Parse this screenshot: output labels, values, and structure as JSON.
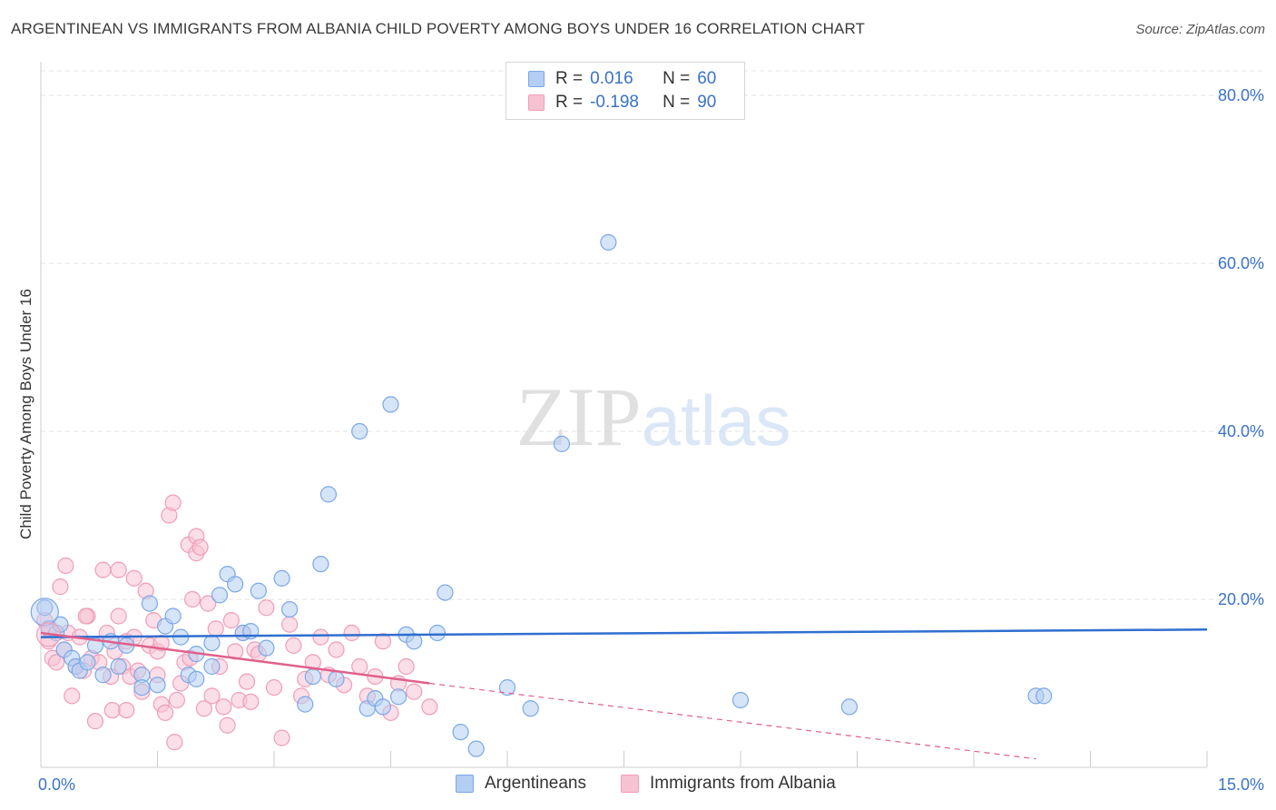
{
  "chart_data": {
    "type": "scatter",
    "title": "ARGENTINEAN VS IMMIGRANTS FROM ALBANIA CHILD POVERTY AMONG BOYS UNDER 16 CORRELATION CHART",
    "source": "Source: ZipAtlas.com",
    "xlabel": "",
    "ylabel": "Child Poverty Among Boys Under 16",
    "xlim": [
      0,
      15
    ],
    "ylim": [
      0,
      84
    ],
    "x_tick_labels": [
      "0.0%",
      "15.0%"
    ],
    "y_ticks": [
      20,
      40,
      60,
      80
    ],
    "y_tick_labels": [
      "20.0%",
      "40.0%",
      "60.0%",
      "80.0%"
    ],
    "grid": true,
    "watermark": "ZIPatlas",
    "series": [
      {
        "name": "Argentineans",
        "color": "#7aa8e8",
        "fill": "#b4cdf2",
        "line_color": "#2f6fd0",
        "stats": {
          "r_label": "R =",
          "r_value": "0.016",
          "n_label": "N =",
          "n_value": "60"
        },
        "trend": {
          "x": [
            0,
            15
          ],
          "y": [
            15.5,
            16.4
          ]
        },
        "points": [
          [
            0.05,
            19
          ],
          [
            0.1,
            16.5
          ],
          [
            0.2,
            16
          ],
          [
            0.25,
            17
          ],
          [
            0.3,
            14
          ],
          [
            0.4,
            13
          ],
          [
            0.45,
            12
          ],
          [
            0.5,
            11.5
          ],
          [
            0.6,
            12.5
          ],
          [
            0.7,
            14.5
          ],
          [
            0.8,
            11
          ],
          [
            0.9,
            15
          ],
          [
            1.0,
            12
          ],
          [
            1.1,
            14.5
          ],
          [
            1.3,
            11
          ],
          [
            1.3,
            9.5
          ],
          [
            1.4,
            19.5
          ],
          [
            1.5,
            9.8
          ],
          [
            1.6,
            16.8
          ],
          [
            1.7,
            18
          ],
          [
            1.8,
            15.5
          ],
          [
            1.9,
            11
          ],
          [
            2.0,
            10.5
          ],
          [
            2.0,
            13.5
          ],
          [
            2.2,
            14.8
          ],
          [
            2.2,
            12
          ],
          [
            2.3,
            20.5
          ],
          [
            2.4,
            23
          ],
          [
            2.5,
            21.8
          ],
          [
            2.6,
            16
          ],
          [
            2.7,
            16.2
          ],
          [
            2.8,
            21
          ],
          [
            2.9,
            14.2
          ],
          [
            3.1,
            22.5
          ],
          [
            3.2,
            18.8
          ],
          [
            3.4,
            7.5
          ],
          [
            3.5,
            10.8
          ],
          [
            3.6,
            24.2
          ],
          [
            3.7,
            32.5
          ],
          [
            3.8,
            10.5
          ],
          [
            4.1,
            40
          ],
          [
            4.2,
            7
          ],
          [
            4.3,
            8.2
          ],
          [
            4.4,
            7.2
          ],
          [
            4.5,
            43.2
          ],
          [
            4.6,
            8.4
          ],
          [
            4.7,
            15.8
          ],
          [
            4.8,
            15
          ],
          [
            5.1,
            16
          ],
          [
            5.2,
            20.8
          ],
          [
            5.4,
            4.2
          ],
          [
            5.6,
            2.2
          ],
          [
            6.0,
            9.5
          ],
          [
            6.3,
            7
          ],
          [
            6.7,
            38.5
          ],
          [
            7.3,
            62.5
          ],
          [
            9.0,
            8
          ],
          [
            10.4,
            7.2
          ],
          [
            12.8,
            8.5
          ],
          [
            12.9,
            8.5
          ]
        ]
      },
      {
        "name": "Immigrants from Albania",
        "color": "#ef9db8",
        "fill": "#f7c3d3",
        "line_color": "#e0608b",
        "stats": {
          "r_label": "R =",
          "r_value": "-0.198",
          "n_label": "N =",
          "n_value": "90"
        },
        "trend": {
          "x": [
            0,
            5.0
          ],
          "y": [
            16,
            10
          ]
        },
        "trend_dashed": {
          "x": [
            5.0,
            12.8
          ],
          "y": [
            10,
            1
          ]
        },
        "points": [
          [
            0.05,
            17.5
          ],
          [
            0.1,
            15
          ],
          [
            0.12,
            16.5
          ],
          [
            0.15,
            13
          ],
          [
            0.2,
            12.5
          ],
          [
            0.25,
            21.5
          ],
          [
            0.3,
            14
          ],
          [
            0.32,
            24
          ],
          [
            0.35,
            16
          ],
          [
            0.4,
            8.5
          ],
          [
            0.45,
            12
          ],
          [
            0.5,
            15.5
          ],
          [
            0.55,
            11.5
          ],
          [
            0.6,
            18
          ],
          [
            0.65,
            13
          ],
          [
            0.7,
            5.5
          ],
          [
            0.75,
            12.5
          ],
          [
            0.8,
            23.5
          ],
          [
            0.85,
            16
          ],
          [
            0.9,
            10.8
          ],
          [
            0.92,
            6.8
          ],
          [
            0.95,
            13.8
          ],
          [
            1.0,
            23.5
          ],
          [
            1.0,
            18
          ],
          [
            1.05,
            12
          ],
          [
            1.1,
            6.8
          ],
          [
            1.1,
            15
          ],
          [
            1.15,
            10.8
          ],
          [
            1.2,
            22.5
          ],
          [
            1.2,
            15.5
          ],
          [
            1.25,
            11.5
          ],
          [
            1.3,
            9
          ],
          [
            1.35,
            21
          ],
          [
            1.4,
            14.5
          ],
          [
            1.45,
            17.5
          ],
          [
            1.5,
            13.8
          ],
          [
            1.5,
            11
          ],
          [
            1.55,
            7.5
          ],
          [
            1.6,
            6.5
          ],
          [
            1.65,
            30
          ],
          [
            1.7,
            31.5
          ],
          [
            1.72,
            3
          ],
          [
            1.75,
            8
          ],
          [
            1.8,
            10
          ],
          [
            1.85,
            12.5
          ],
          [
            1.9,
            26.5
          ],
          [
            1.92,
            13
          ],
          [
            1.95,
            20
          ],
          [
            2.0,
            25.5
          ],
          [
            2.0,
            27.5
          ],
          [
            2.05,
            26.2
          ],
          [
            2.1,
            7
          ],
          [
            2.15,
            19.5
          ],
          [
            2.2,
            8.5
          ],
          [
            2.25,
            16.5
          ],
          [
            2.3,
            12
          ],
          [
            2.35,
            7.2
          ],
          [
            2.4,
            5
          ],
          [
            2.45,
            17.5
          ],
          [
            2.5,
            13.8
          ],
          [
            2.55,
            8
          ],
          [
            2.6,
            16
          ],
          [
            2.65,
            10.2
          ],
          [
            2.7,
            7.8
          ],
          [
            2.75,
            14
          ],
          [
            2.8,
            13.5
          ],
          [
            2.9,
            19
          ],
          [
            3.0,
            9.5
          ],
          [
            3.1,
            3.5
          ],
          [
            3.2,
            17
          ],
          [
            3.25,
            14.5
          ],
          [
            3.35,
            8.5
          ],
          [
            3.4,
            10.5
          ],
          [
            3.5,
            12.5
          ],
          [
            3.6,
            15.5
          ],
          [
            3.7,
            11
          ],
          [
            3.8,
            14
          ],
          [
            3.9,
            9.8
          ],
          [
            4.0,
            16
          ],
          [
            4.1,
            12
          ],
          [
            4.2,
            8.5
          ],
          [
            4.3,
            10.8
          ],
          [
            4.4,
            15
          ],
          [
            4.5,
            6.5
          ],
          [
            4.6,
            10
          ],
          [
            4.7,
            12
          ],
          [
            4.8,
            9
          ],
          [
            5.0,
            7.2
          ],
          [
            1.55,
            14.8
          ],
          [
            0.58,
            18
          ]
        ]
      }
    ]
  },
  "legend_bottom": [
    "Argentineans",
    "Immigrants from Albania"
  ]
}
